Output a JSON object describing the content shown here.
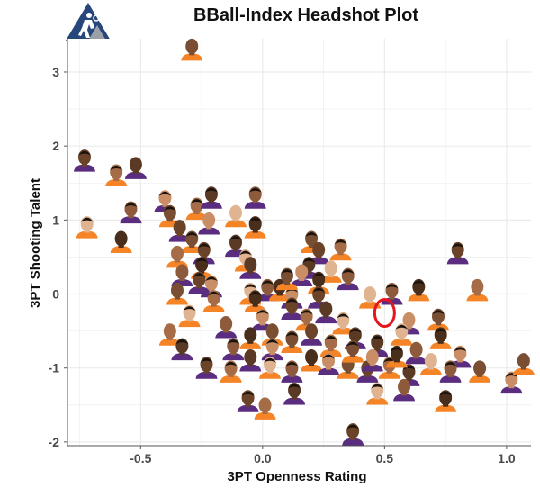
{
  "title": "BBall-Index Headshot Plot",
  "logo_icon": "basketball-player-triangle-logo",
  "colors": {
    "background": "#ffffff",
    "grid": "#ebebeb",
    "highlight_circle": "#e8141c",
    "logo_blue": "#27477a",
    "logo_gray": "#9aa0a6"
  },
  "chart_data": {
    "type": "scatter",
    "marker": "player headshot",
    "title": "BBall-Index Headshot Plot",
    "xlabel": "3PT Openness Rating",
    "ylabel": "3PT Shooting Talent",
    "xlim": [
      -0.8,
      1.1
    ],
    "ylim": [
      -2.05,
      3.45
    ],
    "x_ticks": [
      "-0.5",
      "0.0",
      "0.5",
      "1.0"
    ],
    "y_ticks": [
      "-2",
      "-1",
      "0",
      "1",
      "2",
      "3"
    ],
    "grid": true,
    "legend": "none",
    "highlighted_point": {
      "x": 0.5,
      "y": -0.28
    },
    "points": [
      {
        "x": -0.29,
        "y": 3.3
      },
      {
        "x": -0.73,
        "y": 1.8
      },
      {
        "x": -0.6,
        "y": 1.6
      },
      {
        "x": -0.52,
        "y": 1.7
      },
      {
        "x": -0.72,
        "y": 0.9
      },
      {
        "x": -0.54,
        "y": 1.1
      },
      {
        "x": -0.58,
        "y": 0.7
      },
      {
        "x": -0.4,
        "y": 1.25
      },
      {
        "x": -0.38,
        "y": 1.05
      },
      {
        "x": -0.34,
        "y": 0.85
      },
      {
        "x": -0.27,
        "y": 1.15
      },
      {
        "x": -0.21,
        "y": 1.3
      },
      {
        "x": -0.11,
        "y": 1.05
      },
      {
        "x": -0.03,
        "y": 1.3
      },
      {
        "x": -0.03,
        "y": 0.9
      },
      {
        "x": -0.22,
        "y": 0.95
      },
      {
        "x": -0.29,
        "y": 0.7
      },
      {
        "x": -0.24,
        "y": 0.55
      },
      {
        "x": -0.35,
        "y": 0.5
      },
      {
        "x": -0.11,
        "y": 0.65
      },
      {
        "x": -0.07,
        "y": 0.45
      },
      {
        "x": -0.33,
        "y": 0.25
      },
      {
        "x": -0.25,
        "y": 0.35
      },
      {
        "x": -0.21,
        "y": 0.1
      },
      {
        "x": -0.35,
        "y": 0.0
      },
      {
        "x": -0.26,
        "y": 0.15
      },
      {
        "x": -0.2,
        "y": -0.1
      },
      {
        "x": -0.05,
        "y": 0.35
      },
      {
        "x": -0.05,
        "y": 0.0
      },
      {
        "x": 0.02,
        "y": 0.05
      },
      {
        "x": 0.07,
        "y": 0.05
      },
      {
        "x": 0.12,
        "y": -0.05
      },
      {
        "x": 0.2,
        "y": 0.7
      },
      {
        "x": 0.23,
        "y": 0.55
      },
      {
        "x": 0.32,
        "y": 0.6
      },
      {
        "x": 0.19,
        "y": 0.35
      },
      {
        "x": 0.28,
        "y": 0.3
      },
      {
        "x": 0.35,
        "y": 0.2
      },
      {
        "x": 0.23,
        "y": 0.15
      },
      {
        "x": 0.16,
        "y": 0.25
      },
      {
        "x": 0.1,
        "y": 0.2
      },
      {
        "x": 0.23,
        "y": -0.05
      },
      {
        "x": -0.38,
        "y": -0.55
      },
      {
        "x": -0.33,
        "y": -0.75
      },
      {
        "x": -0.3,
        "y": -0.3
      },
      {
        "x": -0.15,
        "y": -0.45
      },
      {
        "x": -0.03,
        "y": -0.1
      },
      {
        "x": 0.0,
        "y": -0.35
      },
      {
        "x": 0.04,
        "y": -0.55
      },
      {
        "x": 0.12,
        "y": -0.2
      },
      {
        "x": 0.18,
        "y": -0.35
      },
      {
        "x": 0.26,
        "y": -0.25
      },
      {
        "x": 0.33,
        "y": -0.4
      },
      {
        "x": -0.12,
        "y": -0.75
      },
      {
        "x": -0.05,
        "y": -0.6
      },
      {
        "x": 0.04,
        "y": -0.75
      },
      {
        "x": 0.12,
        "y": -0.65
      },
      {
        "x": 0.2,
        "y": -0.55
      },
      {
        "x": 0.28,
        "y": -0.7
      },
      {
        "x": 0.38,
        "y": -0.6
      },
      {
        "x": 0.44,
        "y": -0.05
      },
      {
        "x": 0.53,
        "y": 0.0
      },
      {
        "x": 0.64,
        "y": 0.05
      },
      {
        "x": 0.6,
        "y": -0.4
      },
      {
        "x": 0.72,
        "y": -0.35
      },
      {
        "x": 0.8,
        "y": 0.55
      },
      {
        "x": 0.88,
        "y": 0.05
      },
      {
        "x": 0.47,
        "y": -0.7
      },
      {
        "x": 0.57,
        "y": -0.55
      },
      {
        "x": 0.63,
        "y": -0.8
      },
      {
        "x": 0.73,
        "y": -0.6
      },
      {
        "x": 0.81,
        "y": -0.85
      },
      {
        "x": 0.89,
        "y": -1.05
      },
      {
        "x": -0.23,
        "y": -1.0
      },
      {
        "x": -0.13,
        "y": -1.05
      },
      {
        "x": -0.05,
        "y": -0.9
      },
      {
        "x": 0.03,
        "y": -1.0
      },
      {
        "x": 0.12,
        "y": -1.05
      },
      {
        "x": 0.2,
        "y": -0.9
      },
      {
        "x": 0.27,
        "y": -0.95
      },
      {
        "x": 0.35,
        "y": -1.0
      },
      {
        "x": 0.43,
        "y": -1.05
      },
      {
        "x": 0.52,
        "y": -1.0
      },
      {
        "x": 0.6,
        "y": -1.1
      },
      {
        "x": 0.69,
        "y": -0.95
      },
      {
        "x": 0.77,
        "y": -1.05
      },
      {
        "x": 0.55,
        "y": -0.85
      },
      {
        "x": 0.45,
        "y": -0.9
      },
      {
        "x": 0.37,
        "y": -0.78
      },
      {
        "x": -0.06,
        "y": -1.45
      },
      {
        "x": 0.01,
        "y": -1.55
      },
      {
        "x": 0.13,
        "y": -1.35
      },
      {
        "x": 0.47,
        "y": -1.35
      },
      {
        "x": 0.58,
        "y": -1.3
      },
      {
        "x": 0.75,
        "y": -1.45
      },
      {
        "x": 1.02,
        "y": -1.2
      },
      {
        "x": 1.07,
        "y": -0.95
      },
      {
        "x": 0.37,
        "y": -1.9
      }
    ]
  }
}
